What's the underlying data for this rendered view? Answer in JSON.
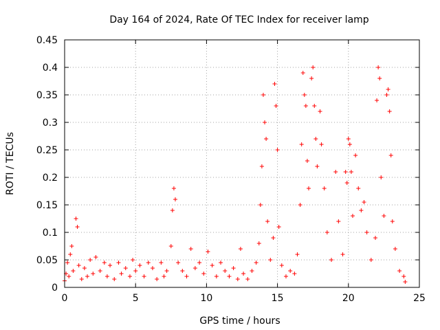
{
  "chart_data": {
    "type": "scatter",
    "title": "Day 164 of 2024, Rate Of TEC Index for receiver lamp",
    "xlabel": "GPS time / hours",
    "ylabel": "ROTI / TECUs",
    "xlim": [
      0,
      25
    ],
    "ylim": [
      0,
      0.45
    ],
    "x_ticks": [
      0,
      5,
      10,
      15,
      20,
      25
    ],
    "x_tick_labels": [
      "0",
      "5",
      "10",
      "15",
      "20",
      "25"
    ],
    "y_ticks": [
      0,
      0.05,
      0.1,
      0.15,
      0.2,
      0.25,
      0.3,
      0.35,
      0.4,
      0.45
    ],
    "y_tick_labels": [
      "0",
      "0.05",
      "0.1",
      "0.15",
      "0.2",
      "0.25",
      "0.3",
      "0.35",
      "0.4",
      "0.45"
    ],
    "grid": true,
    "marker": "+",
    "color": "#ff0000",
    "series": [
      {
        "name": "ROTI",
        "points": [
          [
            0.0,
            0.012
          ],
          [
            0.1,
            0.025
          ],
          [
            0.2,
            0.045
          ],
          [
            0.3,
            0.02
          ],
          [
            0.4,
            0.06
          ],
          [
            0.5,
            0.075
          ],
          [
            0.6,
            0.03
          ],
          [
            0.8,
            0.125
          ],
          [
            0.9,
            0.11
          ],
          [
            1.0,
            0.04
          ],
          [
            1.2,
            0.015
          ],
          [
            1.4,
            0.035
          ],
          [
            1.6,
            0.02
          ],
          [
            1.8,
            0.05
          ],
          [
            2.0,
            0.025
          ],
          [
            2.2,
            0.055
          ],
          [
            2.5,
            0.03
          ],
          [
            2.8,
            0.045
          ],
          [
            3.0,
            0.02
          ],
          [
            3.2,
            0.04
          ],
          [
            3.5,
            0.015
          ],
          [
            3.8,
            0.045
          ],
          [
            4.0,
            0.025
          ],
          [
            4.3,
            0.035
          ],
          [
            4.6,
            0.02
          ],
          [
            4.8,
            0.05
          ],
          [
            5.0,
            0.03
          ],
          [
            5.3,
            0.04
          ],
          [
            5.6,
            0.02
          ],
          [
            5.9,
            0.045
          ],
          [
            6.2,
            0.035
          ],
          [
            6.5,
            0.015
          ],
          [
            6.8,
            0.045
          ],
          [
            7.0,
            0.02
          ],
          [
            7.2,
            0.03
          ],
          [
            7.5,
            0.075
          ],
          [
            7.6,
            0.14
          ],
          [
            7.7,
            0.18
          ],
          [
            7.8,
            0.16
          ],
          [
            8.0,
            0.045
          ],
          [
            8.3,
            0.03
          ],
          [
            8.6,
            0.02
          ],
          [
            8.9,
            0.07
          ],
          [
            9.2,
            0.035
          ],
          [
            9.5,
            0.045
          ],
          [
            9.8,
            0.025
          ],
          [
            10.1,
            0.065
          ],
          [
            10.4,
            0.04
          ],
          [
            10.7,
            0.02
          ],
          [
            11.0,
            0.045
          ],
          [
            11.3,
            0.03
          ],
          [
            11.6,
            0.02
          ],
          [
            11.9,
            0.035
          ],
          [
            12.2,
            0.015
          ],
          [
            12.4,
            0.07
          ],
          [
            12.6,
            0.025
          ],
          [
            12.9,
            0.015
          ],
          [
            13.2,
            0.03
          ],
          [
            13.5,
            0.045
          ],
          [
            13.7,
            0.08
          ],
          [
            13.8,
            0.15
          ],
          [
            13.9,
            0.22
          ],
          [
            14.0,
            0.35
          ],
          [
            14.1,
            0.3
          ],
          [
            14.2,
            0.27
          ],
          [
            14.3,
            0.12
          ],
          [
            14.5,
            0.05
          ],
          [
            14.7,
            0.09
          ],
          [
            14.8,
            0.37
          ],
          [
            14.9,
            0.33
          ],
          [
            15.0,
            0.25
          ],
          [
            15.1,
            0.11
          ],
          [
            15.3,
            0.04
          ],
          [
            15.6,
            0.02
          ],
          [
            15.9,
            0.03
          ],
          [
            16.2,
            0.025
          ],
          [
            16.4,
            0.06
          ],
          [
            16.6,
            0.15
          ],
          [
            16.7,
            0.26
          ],
          [
            16.8,
            0.39
          ],
          [
            16.9,
            0.35
          ],
          [
            17.0,
            0.33
          ],
          [
            17.1,
            0.23
          ],
          [
            17.2,
            0.18
          ],
          [
            17.4,
            0.38
          ],
          [
            17.5,
            0.4
          ],
          [
            17.6,
            0.33
          ],
          [
            17.7,
            0.27
          ],
          [
            17.8,
            0.22
          ],
          [
            18.0,
            0.32
          ],
          [
            18.1,
            0.26
          ],
          [
            18.3,
            0.18
          ],
          [
            18.5,
            0.1
          ],
          [
            18.8,
            0.05
          ],
          [
            19.1,
            0.21
          ],
          [
            19.3,
            0.12
          ],
          [
            19.6,
            0.06
          ],
          [
            19.8,
            0.21
          ],
          [
            19.9,
            0.19
          ],
          [
            20.0,
            0.27
          ],
          [
            20.1,
            0.26
          ],
          [
            20.2,
            0.21
          ],
          [
            20.3,
            0.13
          ],
          [
            20.5,
            0.24
          ],
          [
            20.7,
            0.18
          ],
          [
            20.9,
            0.14
          ],
          [
            21.1,
            0.155
          ],
          [
            21.3,
            0.1
          ],
          [
            21.6,
            0.05
          ],
          [
            21.9,
            0.09
          ],
          [
            22.0,
            0.34
          ],
          [
            22.1,
            0.4
          ],
          [
            22.2,
            0.38
          ],
          [
            22.3,
            0.2
          ],
          [
            22.5,
            0.13
          ],
          [
            22.7,
            0.35
          ],
          [
            22.8,
            0.36
          ],
          [
            22.9,
            0.32
          ],
          [
            23.0,
            0.24
          ],
          [
            23.1,
            0.12
          ],
          [
            23.3,
            0.07
          ],
          [
            23.6,
            0.03
          ],
          [
            23.9,
            0.02
          ],
          [
            24.0,
            0.01
          ]
        ]
      }
    ]
  }
}
